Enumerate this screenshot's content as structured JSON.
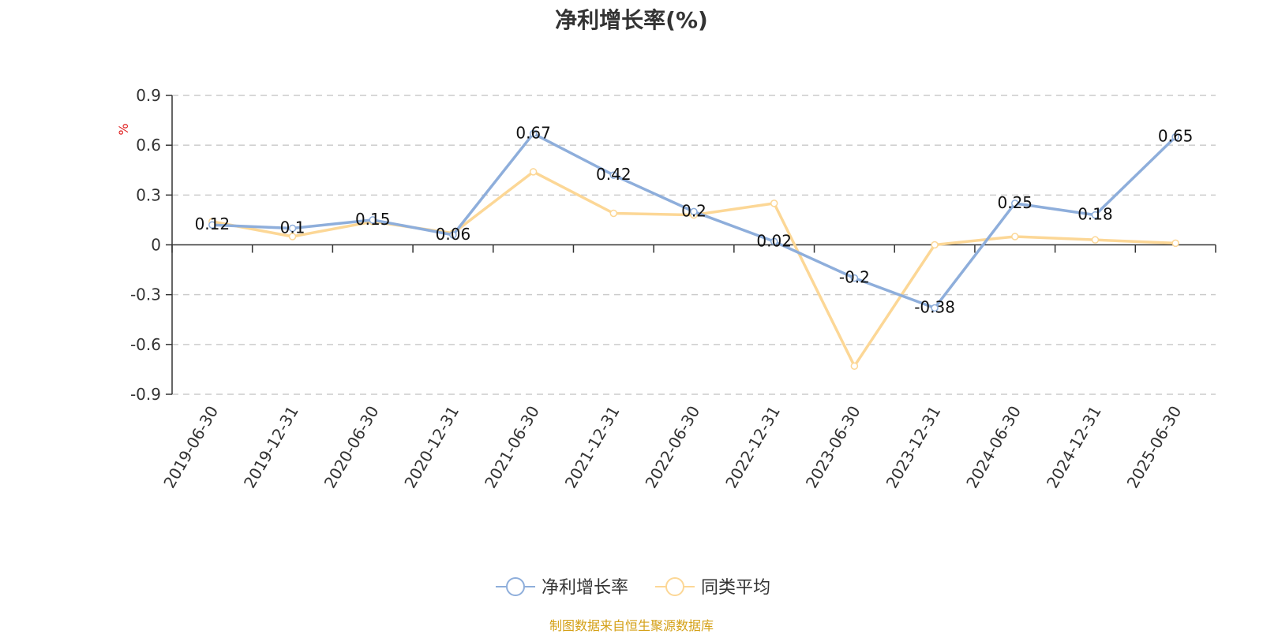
{
  "title": "净利增长率(%)",
  "source": "制图数据来自恒生聚源数据库",
  "colors": {
    "series1": "#8eaedb",
    "series2": "#fcd796",
    "source": "#d4a017",
    "unit": "#e02020",
    "grid": "#cccccc",
    "axis": "#333333"
  },
  "chart_data": {
    "type": "line",
    "title": "净利增长率(%)",
    "ylabel": "%",
    "ylim": [
      -0.9,
      0.9
    ],
    "yticks": [
      0.9,
      0.6,
      0.3,
      0,
      -0.3,
      -0.6,
      -0.9
    ],
    "grid": true,
    "legend_position": "bottom",
    "categories": [
      "2019-06-30",
      "2019-12-31",
      "2020-06-30",
      "2020-12-31",
      "2021-06-30",
      "2021-12-31",
      "2022-06-30",
      "2022-12-31",
      "2023-06-30",
      "2023-12-31",
      "2024-06-30",
      "2024-12-31",
      "2025-06-30"
    ],
    "series": [
      {
        "name": "净利增长率",
        "values": [
          0.12,
          0.1,
          0.15,
          0.06,
          0.67,
          0.42,
          0.2,
          0.02,
          -0.2,
          -0.38,
          0.25,
          0.18,
          0.65
        ],
        "labels": [
          "0.12",
          "0.1",
          "0.15",
          "0.06",
          "0.67",
          "0.42",
          "0.2",
          "0.02",
          "-0.2",
          "-0.38",
          "0.25",
          "0.18",
          "0.65"
        ]
      },
      {
        "name": "同类平均",
        "values": [
          0.14,
          0.05,
          0.14,
          0.07,
          0.44,
          0.19,
          0.18,
          0.25,
          -0.73,
          0.0,
          0.05,
          0.03,
          0.01
        ]
      }
    ]
  }
}
